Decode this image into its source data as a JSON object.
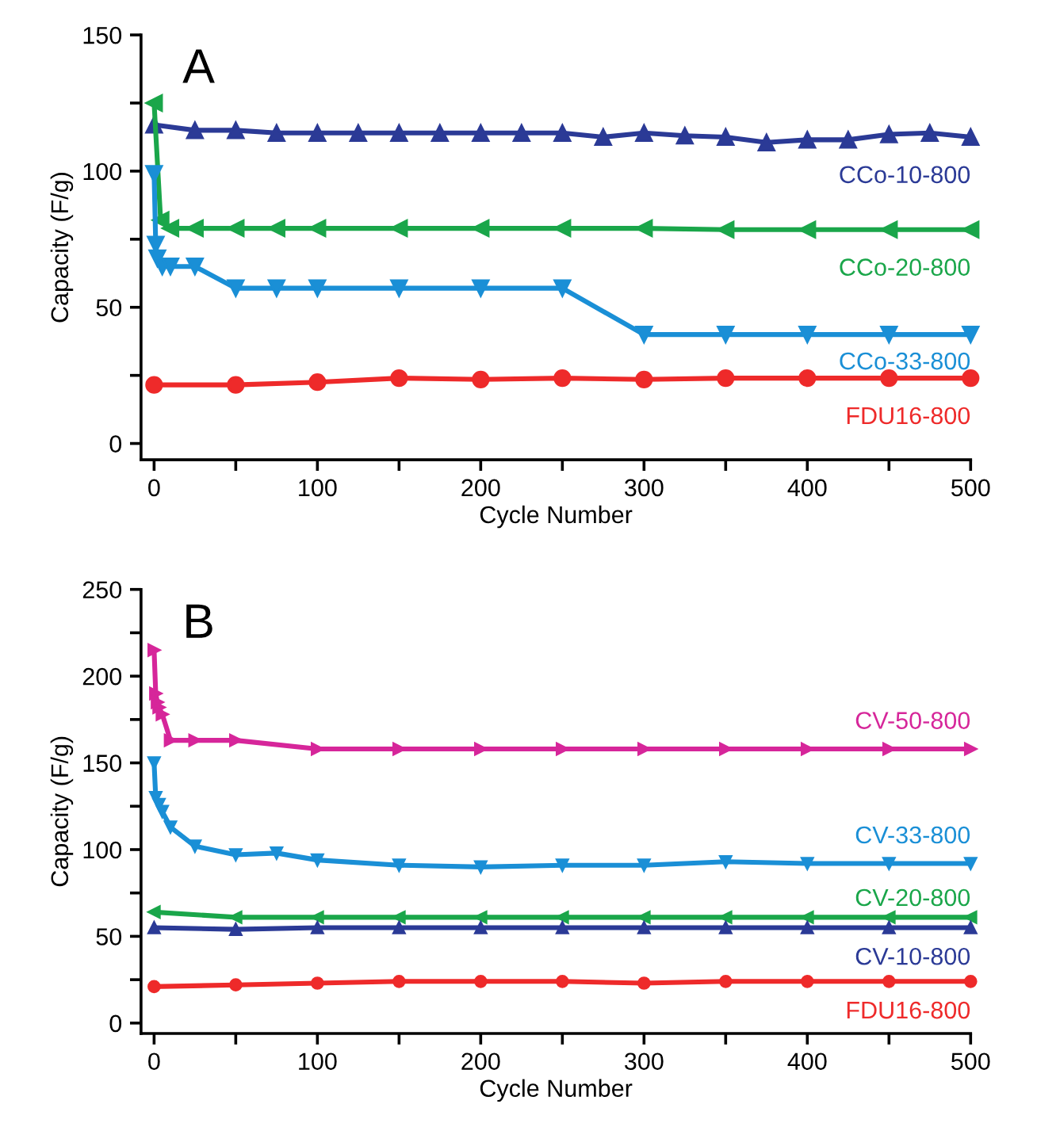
{
  "chart_data": [
    {
      "type": "line",
      "title": "A",
      "xlabel": "Cycle Number",
      "ylabel": "Capacity (F/g)",
      "xlim": [
        -8,
        500
      ],
      "ylim": [
        -6,
        150
      ],
      "xticks": [
        0,
        {
          "value": 50,
          "label": null
        },
        100,
        {
          "value": 150,
          "label": null
        },
        200,
        {
          "value": 250,
          "label": null
        },
        300,
        {
          "value": 350,
          "label": null
        },
        400,
        {
          "value": 450,
          "label": null
        },
        500
      ],
      "yticks": [
        0,
        {
          "value": 25,
          "label": null
        },
        50,
        {
          "value": 75,
          "label": null
        },
        100,
        {
          "value": 125,
          "label": null
        },
        150
      ],
      "grid": false,
      "legend": false,
      "line_style": "solid",
      "series": [
        {
          "name": "CCo-10-800",
          "color": "#2b3a96",
          "marker": "triangle",
          "x": [
            0,
            25,
            50,
            75,
            100,
            125,
            150,
            175,
            200,
            225,
            250,
            275,
            300,
            325,
            350,
            375,
            400,
            425,
            450,
            475,
            500
          ],
          "values": [
            117,
            115,
            115,
            114,
            114,
            114,
            114,
            114,
            114,
            114,
            114,
            112.5,
            114,
            113,
            112.5,
            110.5,
            111.5,
            111.5,
            113.5,
            114,
            112.5
          ]
        },
        {
          "name": "CCo-20-800",
          "color": "#1aa64a",
          "marker": "triangle",
          "x": [
            0,
            4,
            10,
            25,
            50,
            75,
            100,
            150,
            200,
            250,
            300,
            350,
            400,
            450,
            500
          ],
          "values": [
            125,
            82,
            79,
            79,
            79,
            79,
            79,
            79,
            79,
            79,
            79,
            78.5,
            78.5,
            78.5,
            78.5
          ]
        },
        {
          "name": "CCo-33-800",
          "color": "#1a8fd6",
          "marker": "triangle",
          "x": [
            0,
            1,
            2,
            5,
            10,
            25,
            50,
            75,
            100,
            150,
            200,
            250,
            300,
            350,
            400,
            450,
            500
          ],
          "values": [
            99,
            73,
            68,
            65,
            65,
            65,
            57,
            57,
            57,
            57,
            57,
            57,
            40,
            40,
            40,
            40,
            40
          ]
        },
        {
          "name": "FDU16-800",
          "color": "#ee2a2a",
          "marker": "circle",
          "x": [
            0,
            50,
            100,
            150,
            200,
            250,
            300,
            350,
            400,
            450,
            500
          ],
          "values": [
            21.5,
            21.5,
            22.5,
            24,
            23.5,
            24,
            23.5,
            24,
            24,
            24,
            24
          ]
        }
      ]
    },
    {
      "type": "line",
      "title": "B",
      "xlabel": "Cycle Number",
      "ylabel": "Capacity (F/g)",
      "xlim": [
        -8,
        500
      ],
      "ylim": [
        -6,
        250
      ],
      "xticks": [
        0,
        {
          "value": 50,
          "label": null
        },
        100,
        {
          "value": 150,
          "label": null
        },
        200,
        {
          "value": 250,
          "label": null
        },
        300,
        {
          "value": 350,
          "label": null
        },
        400,
        {
          "value": 450,
          "label": null
        },
        500
      ],
      "yticks": [
        0,
        {
          "value": 25,
          "label": null
        },
        50,
        {
          "value": 75,
          "label": null
        },
        100,
        {
          "value": 125,
          "label": null
        },
        150,
        {
          "value": 175,
          "label": null
        },
        200,
        {
          "value": 225,
          "label": null
        },
        250
      ],
      "grid": false,
      "legend": false,
      "line_style": "solid",
      "series": [
        {
          "name": "CV-50-800",
          "color": "#d6269a",
          "marker": "triangle",
          "x": [
            0,
            1,
            2,
            3,
            5,
            10,
            25,
            50,
            100,
            150,
            200,
            250,
            300,
            350,
            400,
            450,
            500
          ],
          "values": [
            215,
            190,
            185,
            182,
            178,
            163,
            163,
            163,
            158,
            158,
            158,
            158,
            158,
            158,
            158,
            158,
            158
          ]
        },
        {
          "name": "CV-33-800",
          "color": "#1a8fd6",
          "marker": "triangle",
          "x": [
            0,
            1,
            3,
            5,
            10,
            25,
            50,
            75,
            100,
            150,
            200,
            250,
            300,
            350,
            400,
            450,
            500
          ],
          "values": [
            150,
            130,
            126,
            122,
            113,
            102,
            97,
            98,
            94,
            91,
            90,
            91,
            91,
            93,
            92,
            92,
            92
          ]
        },
        {
          "name": "CV-20-800",
          "color": "#1aa64a",
          "marker": "triangle",
          "x": [
            0,
            50,
            100,
            150,
            200,
            250,
            300,
            350,
            400,
            450,
            500
          ],
          "values": [
            64,
            61,
            61,
            61,
            61,
            61,
            61,
            61,
            61,
            61,
            61
          ]
        },
        {
          "name": "CV-10-800",
          "color": "#2b3a96",
          "marker": "triangle",
          "x": [
            0,
            50,
            100,
            150,
            200,
            250,
            300,
            350,
            400,
            450,
            500
          ],
          "values": [
            55,
            54,
            55,
            55,
            55,
            55,
            55,
            55,
            55,
            55,
            55
          ]
        },
        {
          "name": "FDU16-800",
          "color": "#ee2a2a",
          "marker": "circle",
          "x": [
            0,
            50,
            100,
            150,
            200,
            250,
            300,
            350,
            400,
            450,
            500
          ],
          "values": [
            21,
            22,
            23,
            24,
            24,
            24,
            23,
            24,
            24,
            24,
            24
          ]
        }
      ]
    }
  ]
}
